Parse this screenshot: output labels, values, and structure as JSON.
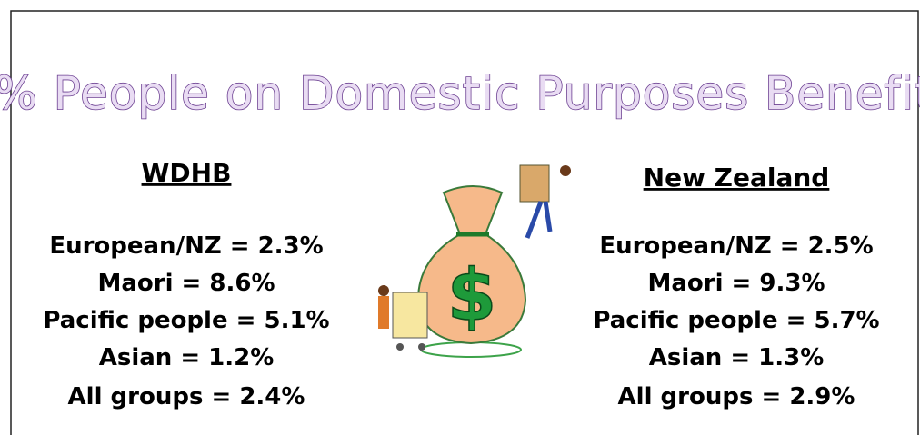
{
  "title": "% People on Domestic Purposes Benefit",
  "columns": [
    {
      "heading": "WDHB",
      "lines": [
        "European/NZ = 2.3%",
        "Maori = 8.6%",
        "Pacific people = 5.1%",
        "Asian = 1.2%",
        "All groups = 2.4%"
      ]
    },
    {
      "heading": "New Zealand",
      "lines": [
        "European/NZ = 2.5%",
        "Maori = 9.3%",
        "Pacific people = 5.7%",
        "Asian = 1.3%",
        "All groups = 2.9%"
      ]
    }
  ]
}
